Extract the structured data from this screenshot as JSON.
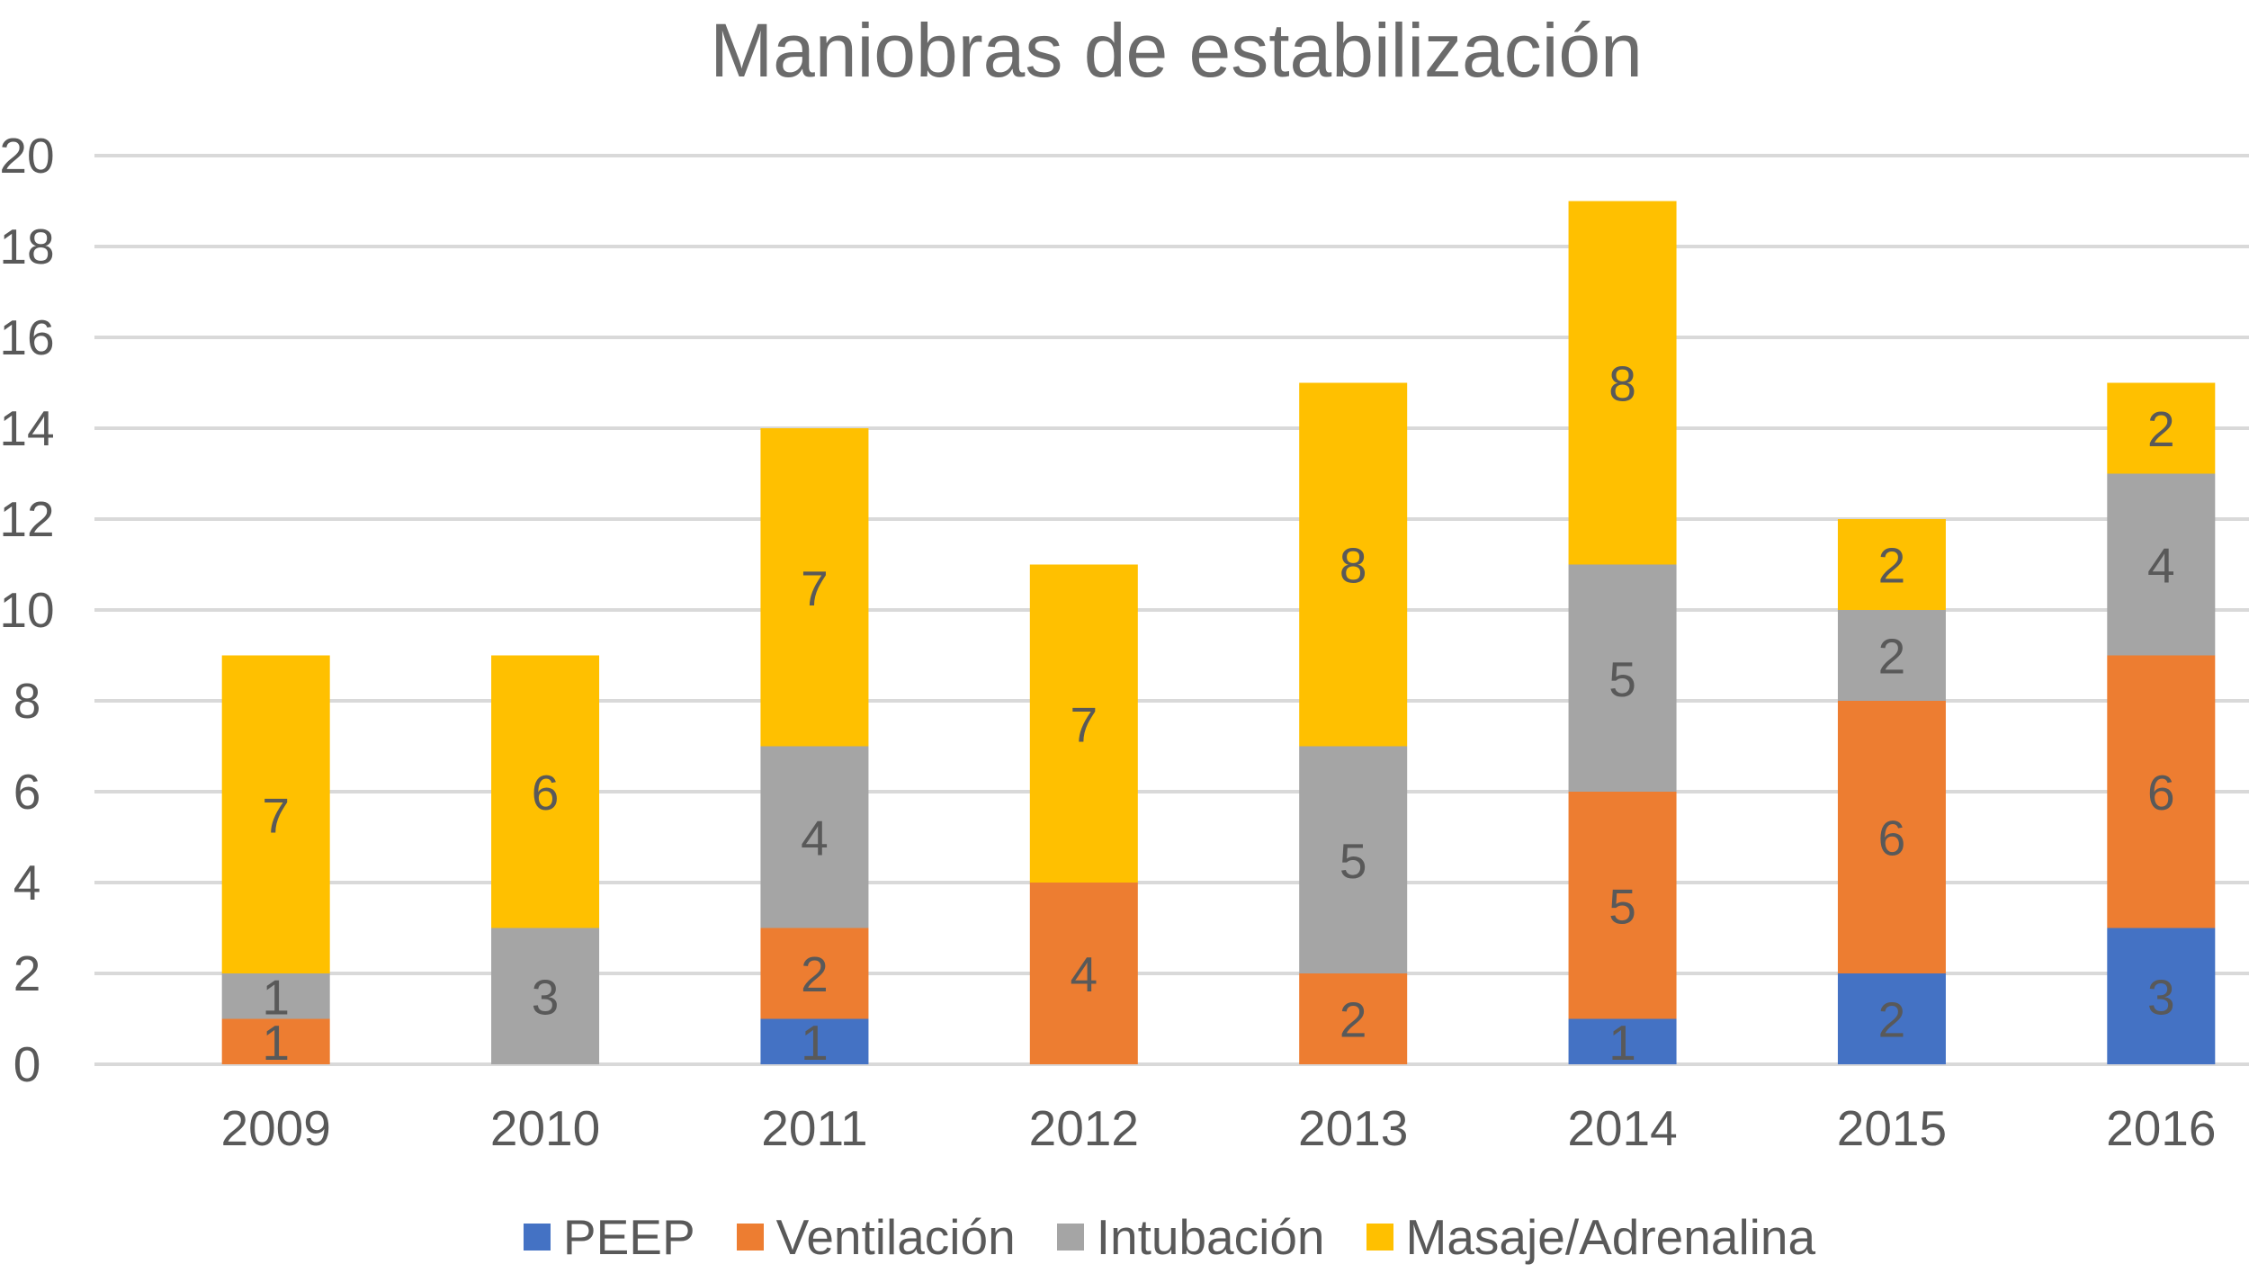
{
  "chart_data": {
    "type": "bar",
    "stacked": true,
    "title": "Maniobras de estabilización",
    "xlabel": "",
    "ylabel": "",
    "ylim": [
      0,
      20
    ],
    "yticks": [
      "0",
      "2",
      "4",
      "6",
      "8",
      "10",
      "12",
      "14",
      "16",
      "18",
      "20"
    ],
    "grid": true,
    "legend_position": "bottom",
    "categories": [
      "2009",
      "2010",
      "2011",
      "2012",
      "2013",
      "2014",
      "2015",
      "2016"
    ],
    "series": [
      {
        "name": "PEEP",
        "color": "#4472c4",
        "values": [
          0,
          0,
          1,
          0,
          0,
          1,
          2,
          3
        ]
      },
      {
        "name": "Ventilación",
        "color": "#ed7d31",
        "values": [
          1,
          0,
          2,
          4,
          2,
          5,
          6,
          6
        ]
      },
      {
        "name": "Intubación",
        "color": "#a5a5a5",
        "values": [
          1,
          3,
          4,
          0,
          5,
          5,
          2,
          4
        ]
      },
      {
        "name": "Masaje/Adrenalina",
        "color": "#ffc000",
        "values": [
          7,
          6,
          7,
          7,
          8,
          8,
          2,
          2
        ]
      }
    ]
  }
}
